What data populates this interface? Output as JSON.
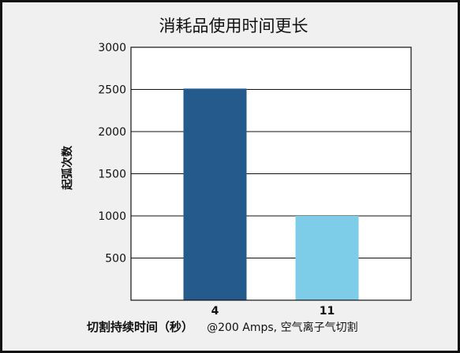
{
  "chart_data": {
    "type": "bar",
    "title": "消耗品使用时间更长",
    "categories": [
      "4",
      "11"
    ],
    "values": [
      2510,
      1000
    ],
    "colors": [
      "#245a8c",
      "#7ecde8"
    ],
    "ylabel": "起弧次数",
    "xlabel": "切割持续时间（秒）",
    "xlabel_note": "@200 Amps, 空气离子气切割",
    "ylim": [
      0,
      3000
    ],
    "yticks": [
      500,
      1000,
      1500,
      2000,
      2500,
      3000
    ],
    "grid": true
  }
}
